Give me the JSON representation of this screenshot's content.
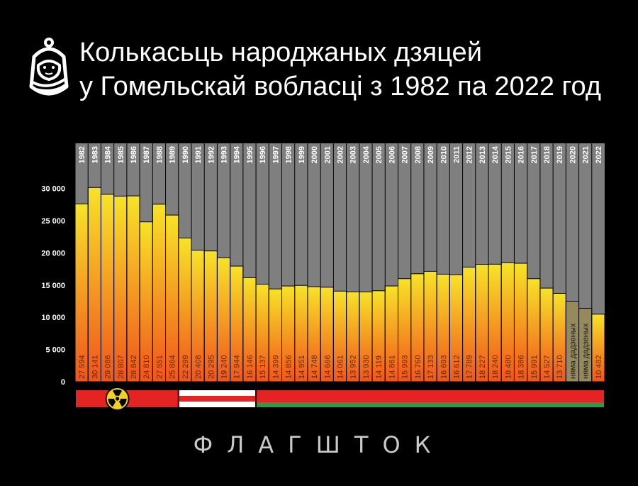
{
  "title": {
    "line1": "Колькасьць народжаных дзяцей",
    "line2": "у Гомельскай вобласці з 1982 па 2022 год"
  },
  "brand": "ФЛАГШТОК",
  "colors": {
    "background": "#000000",
    "plot_background": "#7f7f7f",
    "bar_top": "#f7e328",
    "bar_bottom": "#f1541c",
    "no_data_bar": "#968a5c",
    "flag_red": "#e42323",
    "flag_white": "#ffffff",
    "flag_green": "#2a9a45",
    "radiation_yellow": "#f3d21c"
  },
  "chart_data": {
    "type": "bar",
    "categories": [
      "1982",
      "1983",
      "1984",
      "1985",
      "1986",
      "1987",
      "1988",
      "1989",
      "1990",
      "1991",
      "1992",
      "1993",
      "1994",
      "1995",
      "1996",
      "1997",
      "1998",
      "1999",
      "2000",
      "2001",
      "2002",
      "2003",
      "2004",
      "2005",
      "2006",
      "2007",
      "2008",
      "2009",
      "2010",
      "2011",
      "2012",
      "2013",
      "2014",
      "2015",
      "2016",
      "2017",
      "2018",
      "2019",
      "2020",
      "2021",
      "2022"
    ],
    "values": [
      27594,
      30141,
      29086,
      28807,
      28842,
      24810,
      27551,
      25864,
      22299,
      20408,
      20295,
      19240,
      17944,
      16146,
      15137,
      14399,
      14856,
      14951,
      14748,
      14666,
      14061,
      13952,
      13930,
      14119,
      14861,
      15993,
      16760,
      17133,
      16693,
      16612,
      17789,
      18227,
      18240,
      18480,
      18386,
      15991,
      14527,
      13710,
      null,
      null,
      10482
    ],
    "value_labels": [
      "27 594",
      "30 141",
      "29 086",
      "28 807",
      "28 842",
      "24 810",
      "27 551",
      "25 864",
      "22 299",
      "20 408",
      "20 295",
      "19 240",
      "17 944",
      "16 146",
      "15 137",
      "14 399",
      "14 856",
      "14 951",
      "14 748",
      "14 666",
      "14 061",
      "13 952",
      "13 930",
      "14 119",
      "14 861",
      "15 993",
      "16 760",
      "17 133",
      "16 693",
      "16 612",
      "17 789",
      "18 227",
      "18 240",
      "18 480",
      "18 386",
      "15 991",
      "14 527",
      "13 710",
      "няма дадзеных",
      "няма дадзеных",
      "10 482"
    ],
    "no_data_levels": [
      null,
      null,
      null,
      null,
      null,
      null,
      null,
      null,
      null,
      null,
      null,
      null,
      null,
      null,
      null,
      null,
      null,
      null,
      null,
      null,
      null,
      null,
      null,
      null,
      null,
      null,
      null,
      null,
      null,
      null,
      null,
      null,
      null,
      null,
      null,
      null,
      null,
      null,
      12500,
      11400,
      null
    ],
    "y_ticks": [
      0,
      5000,
      10000,
      15000,
      20000,
      25000,
      30000
    ],
    "y_tick_labels": [
      "0",
      "5 000",
      "10 000",
      "15 000",
      "20 000",
      "25 000",
      "30 000"
    ],
    "ylim": [
      0,
      37000
    ],
    "grid": false,
    "flag_bands": [
      {
        "type": "red-with-radiation",
        "from": "1982",
        "to": "1989"
      },
      {
        "type": "white-red-white",
        "from": "1990",
        "to": "1995"
      },
      {
        "type": "red-green",
        "from": "1996",
        "to": "2022"
      }
    ]
  }
}
